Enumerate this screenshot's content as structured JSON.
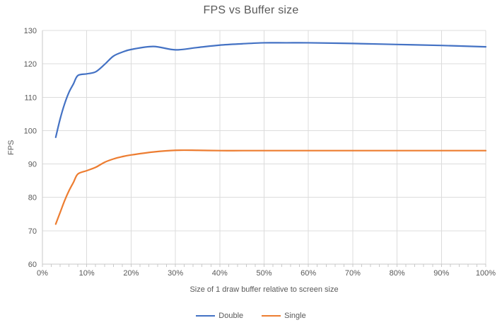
{
  "chart_data": {
    "type": "line",
    "title": "FPS vs Buffer size",
    "xlabel": "Size of 1 draw buffer relative to screen size",
    "ylabel": "FPS",
    "xlim": [
      0,
      100
    ],
    "ylim": [
      60,
      130
    ],
    "x_unit": "percent",
    "x_ticks_percent": [
      0,
      10,
      20,
      30,
      40,
      50,
      60,
      70,
      80,
      90,
      100
    ],
    "x_tick_labels": [
      "0%",
      "10%",
      "20%",
      "30%",
      "40%",
      "50%",
      "60%",
      "70%",
      "80%",
      "90%",
      "100%"
    ],
    "x_minor_tick_step_percent": 2,
    "y_ticks": [
      60,
      70,
      80,
      90,
      100,
      110,
      120,
      130
    ],
    "grid": true,
    "smooth_lines": true,
    "legend_position": "bottom-center",
    "x": [
      3,
      4,
      5,
      6,
      7,
      8,
      10,
      12,
      14,
      16,
      18,
      20,
      25,
      30,
      35,
      40,
      45,
      50,
      55,
      60,
      70,
      80,
      90,
      100
    ],
    "series": [
      {
        "name": "Double",
        "color": "#4472C4",
        "values": [
          98,
          103.5,
          108,
          111.5,
          114,
          116.5,
          117,
          117.6,
          119.8,
          122.3,
          123.5,
          124.3,
          125.2,
          124.2,
          124.9,
          125.6,
          126,
          126.3,
          126.3,
          126.3,
          126.1,
          125.8,
          125.5,
          125.1
        ]
      },
      {
        "name": "Single",
        "color": "#ED7D31",
        "values": [
          72,
          75.5,
          79,
          82,
          84.5,
          87,
          88,
          89,
          90.5,
          91.5,
          92.2,
          92.7,
          93.6,
          94.1,
          94.1,
          94,
          94,
          94,
          94,
          94,
          94,
          94,
          94,
          94
        ]
      }
    ],
    "colors": {
      "grid": "#DCDCDC",
      "axis": "#C9C9C9",
      "tick": "#C9C9C9",
      "text": "#595959",
      "title_text": "#595959"
    }
  }
}
